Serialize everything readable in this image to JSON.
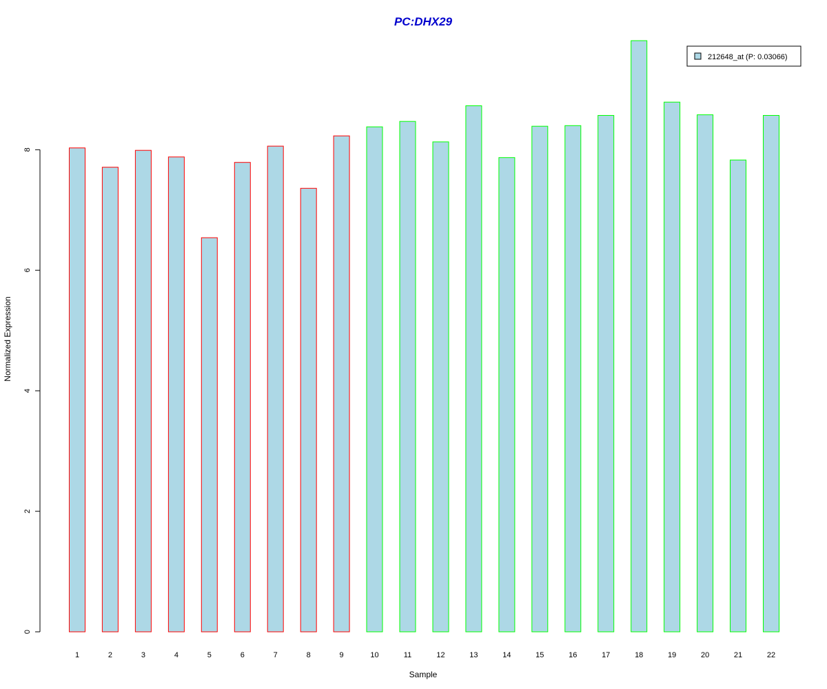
{
  "chart_data": {
    "type": "bar",
    "title": "PC:DHX29",
    "title_color": "#0000CD",
    "xlabel": "Sample",
    "ylabel": "Normalized Expression",
    "categories": [
      "1",
      "2",
      "3",
      "4",
      "5",
      "6",
      "7",
      "8",
      "9",
      "10",
      "11",
      "12",
      "13",
      "14",
      "15",
      "16",
      "17",
      "18",
      "19",
      "20",
      "21",
      "22"
    ],
    "series": [
      {
        "name": "212648_at (P: 0.03066)",
        "values": [
          8.03,
          7.71,
          7.99,
          7.88,
          6.54,
          7.79,
          8.06,
          7.36,
          8.23,
          8.38,
          8.47,
          8.13,
          8.73,
          7.87,
          8.39,
          8.4,
          8.57,
          9.81,
          8.79,
          8.58,
          7.83,
          8.57
        ]
      }
    ],
    "groups": [
      "red",
      "red",
      "red",
      "red",
      "red",
      "red",
      "red",
      "red",
      "red",
      "green",
      "green",
      "green",
      "green",
      "green",
      "green",
      "green",
      "green",
      "green",
      "green",
      "green",
      "green",
      "green"
    ],
    "yticks": [
      0,
      2,
      4,
      6,
      8
    ],
    "ylim": [
      0,
      9.81
    ],
    "grid": false,
    "legend_position": "top-right",
    "colors": {
      "bar_fill": "#ADD8E6",
      "red": "#FF0000",
      "green": "#00FF00",
      "axis": "#000000"
    }
  }
}
